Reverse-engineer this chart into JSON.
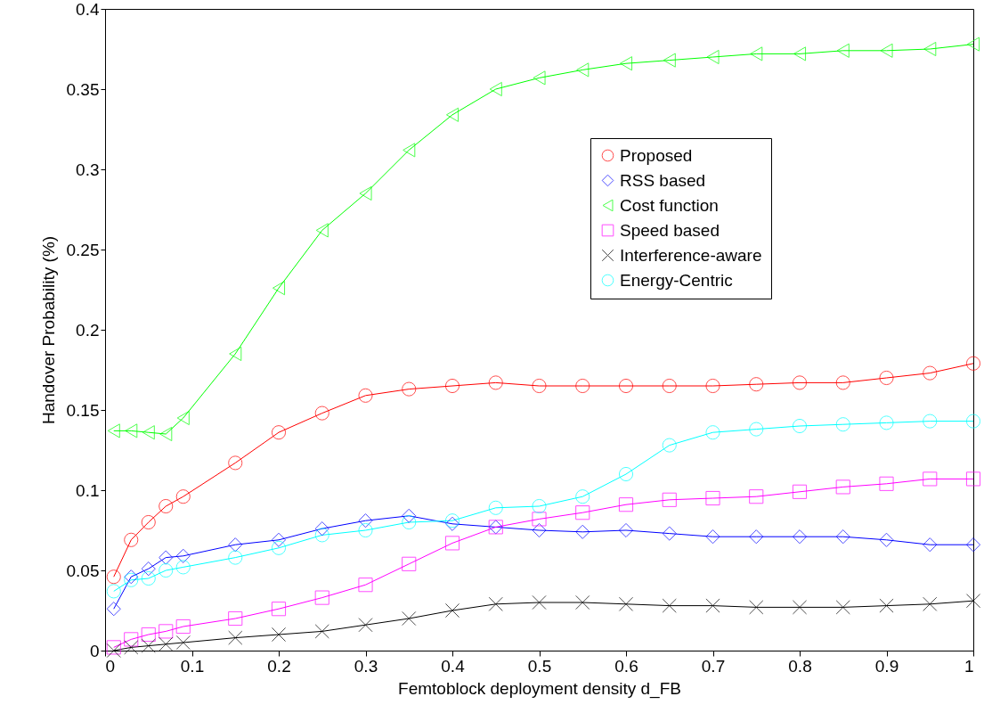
{
  "chart_data": {
    "type": "line",
    "xlabel": "Femtoblock deployment density d_FB",
    "ylabel": "Handover Probability (%)",
    "x": [
      0.01,
      0.03,
      0.05,
      0.07,
      0.09,
      0.15,
      0.2,
      0.25,
      0.3,
      0.35,
      0.4,
      0.45,
      0.5,
      0.55,
      0.6,
      0.65,
      0.7,
      0.75,
      0.8,
      0.85,
      0.9,
      0.95,
      1
    ],
    "series": [
      {
        "name": "Proposed",
        "color": "#ff0000",
        "marker": "circle",
        "values": [
          0.046,
          0.069,
          0.08,
          0.09,
          0.096,
          0.117,
          0.136,
          0.148,
          0.159,
          0.163,
          0.165,
          0.167,
          0.165,
          0.165,
          0.165,
          0.165,
          0.165,
          0.166,
          0.167,
          0.167,
          0.17,
          0.173,
          0.179
        ]
      },
      {
        "name": "RSS based",
        "color": "#0000ff",
        "marker": "diamond",
        "values": [
          0.026,
          0.046,
          0.051,
          0.058,
          0.059,
          0.066,
          0.069,
          0.076,
          0.081,
          0.084,
          0.079,
          0.077,
          0.075,
          0.074,
          0.075,
          0.073,
          0.071,
          0.071,
          0.071,
          0.071,
          0.069,
          0.066,
          0.066
        ]
      },
      {
        "name": "Cost function",
        "color": "#00ff00",
        "marker": "triangle",
        "values": [
          0.137,
          0.137,
          0.136,
          0.135,
          0.145,
          0.185,
          0.226,
          0.262,
          0.285,
          0.312,
          0.334,
          0.35,
          0.357,
          0.362,
          0.366,
          0.368,
          0.37,
          0.372,
          0.372,
          0.374,
          0.374,
          0.375,
          0.378
        ]
      },
      {
        "name": "Speed based",
        "color": "#ff00ff",
        "marker": "square",
        "values": [
          0.002,
          0.007,
          0.01,
          0.012,
          0.015,
          0.02,
          0.026,
          0.033,
          0.041,
          0.054,
          0.067,
          0.077,
          0.082,
          0.086,
          0.091,
          0.094,
          0.095,
          0.096,
          0.099,
          0.102,
          0.104,
          0.107,
          0.107
        ]
      },
      {
        "name": "Interference-aware",
        "color": "#000000",
        "marker": "cross",
        "values": [
          0.0,
          0.002,
          0.003,
          0.004,
          0.005,
          0.008,
          0.01,
          0.012,
          0.016,
          0.02,
          0.025,
          0.029,
          0.03,
          0.03,
          0.029,
          0.028,
          0.028,
          0.027,
          0.027,
          0.027,
          0.028,
          0.029,
          0.031
        ]
      },
      {
        "name": "Energy-Centric",
        "color": "#00ffff",
        "marker": "circle",
        "values": [
          0.037,
          0.044,
          0.045,
          0.05,
          0.052,
          0.058,
          0.064,
          0.072,
          0.075,
          0.08,
          0.081,
          0.089,
          0.09,
          0.096,
          0.11,
          0.128,
          0.136,
          0.138,
          0.14,
          0.141,
          0.142,
          0.143,
          0.143
        ]
      }
    ],
    "xlim": [
      0,
      1
    ],
    "xticks": [
      0,
      0.1,
      0.2,
      0.3,
      0.4,
      0.5,
      0.6,
      0.7,
      0.8,
      0.9,
      1
    ],
    "ylim": [
      0,
      0.4
    ],
    "yticks": [
      0,
      0.05,
      0.1,
      0.15,
      0.2,
      0.25,
      0.3,
      0.35,
      0.4
    ],
    "grid": false,
    "legend": "top right",
    "line_style": "solid"
  }
}
